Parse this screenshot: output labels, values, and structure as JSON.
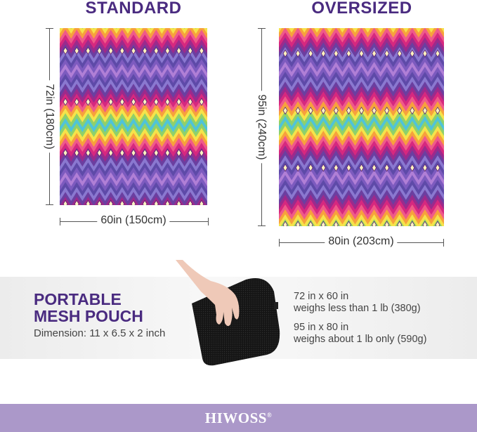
{
  "standard": {
    "title": "STANDARD",
    "height_label": "72in (180cm)",
    "width_label": "60in (150cm)"
  },
  "oversized": {
    "title": "OVERSIZED",
    "height_label": "95in (240cm)",
    "width_label": "80in (203cm)"
  },
  "pouch": {
    "title_line1": "PORTABLE",
    "title_line2": "MESH POUCH",
    "dimension": "Dimension: 11 x 6.5 x 2 inch"
  },
  "weights": [
    {
      "size": "72 in x 60 in",
      "weight": "weighs less than 1 lb (380g)"
    },
    {
      "size": "95 in x 80 in",
      "weight": "weighs about 1 lb only (590g)"
    }
  ],
  "brand": {
    "name": "HIWOSS",
    "mark": "®"
  },
  "colors": {
    "title": "#4a2b80",
    "footer": "#ab98c9",
    "pattern": [
      "#4fc3d9",
      "#8fd06a",
      "#f5e34a",
      "#f7a13c",
      "#ef5a8a",
      "#d6287f",
      "#9c2a8c",
      "#6b3fa0",
      "#8a78d0",
      "#5e4aa8",
      "#7d5bbf",
      "#b07fd6"
    ]
  }
}
